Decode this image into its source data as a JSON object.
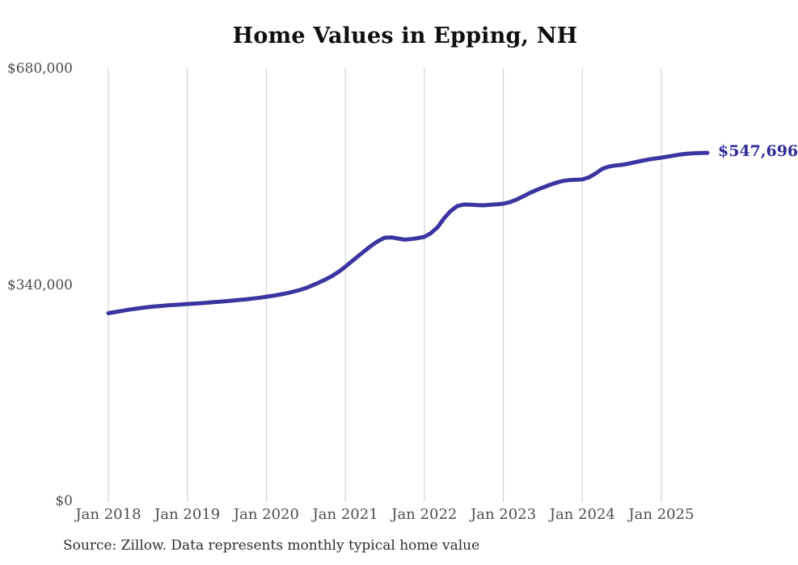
{
  "chart": {
    "title": "Home Values in Epping, NH",
    "end_label": "$547,696",
    "source": "Source: Zillow. Data represents monthly typical home value",
    "colors": {
      "line": "#3b34a1",
      "end_label": "#2e2a99",
      "gridline": "#cccccc",
      "axis_text": "#4d4d4d",
      "title_text": "#0f0f0f",
      "source_text": "#2d2d2d",
      "background": "#ffffff"
    }
  },
  "chart_data": {
    "type": "line",
    "title": "Home Values in Epping, NH",
    "xlabel": "",
    "ylabel": "",
    "x_start": "2018-01",
    "x_end": "2025-08",
    "x_interval": "monthly",
    "x_tick_labels": [
      "Jan 2018",
      "Jan 2019",
      "Jan 2020",
      "Jan 2021",
      "Jan 2022",
      "Jan 2023",
      "Jan 2024",
      "Jan 2025"
    ],
    "y_ticks": [
      {
        "value": 0,
        "label": "$0"
      },
      {
        "value": 340000,
        "label": "$340,000"
      },
      {
        "value": 680000,
        "label": "$680,000"
      }
    ],
    "ylim": [
      0,
      680000
    ],
    "grid": "vertical-only",
    "legend": "none",
    "series": [
      {
        "name": "Typical home value",
        "final_value": 547696,
        "final_value_label": "$547,696",
        "monthly_values": [
          295500,
          297300,
          299100,
          300800,
          302400,
          303800,
          305100,
          306200,
          307000,
          307800,
          308600,
          309300,
          310000,
          310700,
          311300,
          312100,
          312900,
          313700,
          314600,
          315500,
          316500,
          317500,
          318600,
          319900,
          321400,
          323000,
          324800,
          326800,
          329100,
          331800,
          335100,
          339200,
          343800,
          348700,
          354100,
          360900,
          368600,
          377200,
          385800,
          394200,
          402200,
          409200,
          414300,
          414800,
          412900,
          411200,
          412100,
          413600,
          415600,
          421500,
          430500,
          444900,
          456200,
          464100,
          466500,
          466100,
          465400,
          465200,
          465900,
          466800,
          467800,
          470200,
          474200,
          479200,
          484500,
          489100,
          493200,
          497100,
          500600,
          503400,
          504900,
          505400,
          505900,
          509200,
          515200,
          522400,
          526100,
          527900,
          528800,
          530600,
          532900,
          535100,
          537100,
          538800,
          540200,
          541900,
          543600,
          545300,
          546400,
          547000,
          547400,
          547696
        ]
      }
    ]
  }
}
